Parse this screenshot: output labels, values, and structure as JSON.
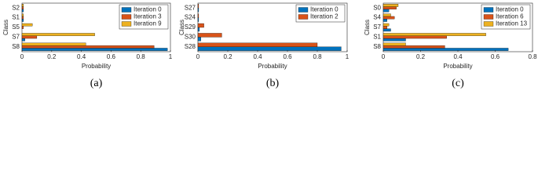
{
  "chart_data": [
    {
      "type": "barh",
      "caption": "(a)",
      "xlabel": "Probability",
      "ylabel": "Class",
      "categories": [
        "S2",
        "S1",
        "S5",
        "S7",
        "S8"
      ],
      "series": [
        {
          "name": "Iteration 0",
          "color": "#0072bd",
          "values": [
            0.01,
            0.01,
            0.0,
            0.02,
            0.98
          ]
        },
        {
          "name": "Iteration 3",
          "color": "#d95319",
          "values": [
            0.01,
            0.01,
            0.01,
            0.1,
            0.89
          ]
        },
        {
          "name": "Iteration 9",
          "color": "#edb120",
          "values": [
            0.01,
            0.01,
            0.07,
            0.49,
            0.43
          ]
        }
      ],
      "xlim": [
        0,
        1
      ],
      "xticks": [
        0,
        0.2,
        0.4,
        0.6,
        0.8,
        1
      ],
      "legend": "top-right"
    },
    {
      "type": "barh",
      "caption": "(b)",
      "xlabel": "Probability",
      "ylabel": "Class",
      "categories": [
        "S27",
        "S24",
        "S29",
        "S30",
        "S28"
      ],
      "series": [
        {
          "name": "Iteration 0",
          "color": "#0072bd",
          "values": [
            0.005,
            0.005,
            0.01,
            0.02,
            0.96
          ]
        },
        {
          "name": "Iteration 2",
          "color": "#d95319",
          "values": [
            0.005,
            0.005,
            0.04,
            0.16,
            0.8
          ]
        }
      ],
      "xlim": [
        0,
        1
      ],
      "xticks": [
        0,
        0.2,
        0.4,
        0.6,
        0.8,
        1
      ],
      "legend": "top-right"
    },
    {
      "type": "barh",
      "caption": "(c)",
      "xlabel": "Probability",
      "ylabel": "Class",
      "categories": [
        "S0",
        "S4",
        "S7",
        "S1",
        "S8"
      ],
      "series": [
        {
          "name": "Iteration 0",
          "color": "#0072bd",
          "values": [
            0.03,
            0.02,
            0.04,
            0.12,
            0.67
          ]
        },
        {
          "name": "Iteration 6",
          "color": "#d95319",
          "values": [
            0.07,
            0.06,
            0.02,
            0.34,
            0.33
          ]
        },
        {
          "name": "Iteration 13",
          "color": "#edb120",
          "values": [
            0.08,
            0.04,
            0.03,
            0.55,
            0.12
          ]
        }
      ],
      "xlim": [
        0,
        0.8
      ],
      "xticks": [
        0,
        0.2,
        0.4,
        0.6,
        0.8
      ],
      "legend": "top-right"
    }
  ]
}
